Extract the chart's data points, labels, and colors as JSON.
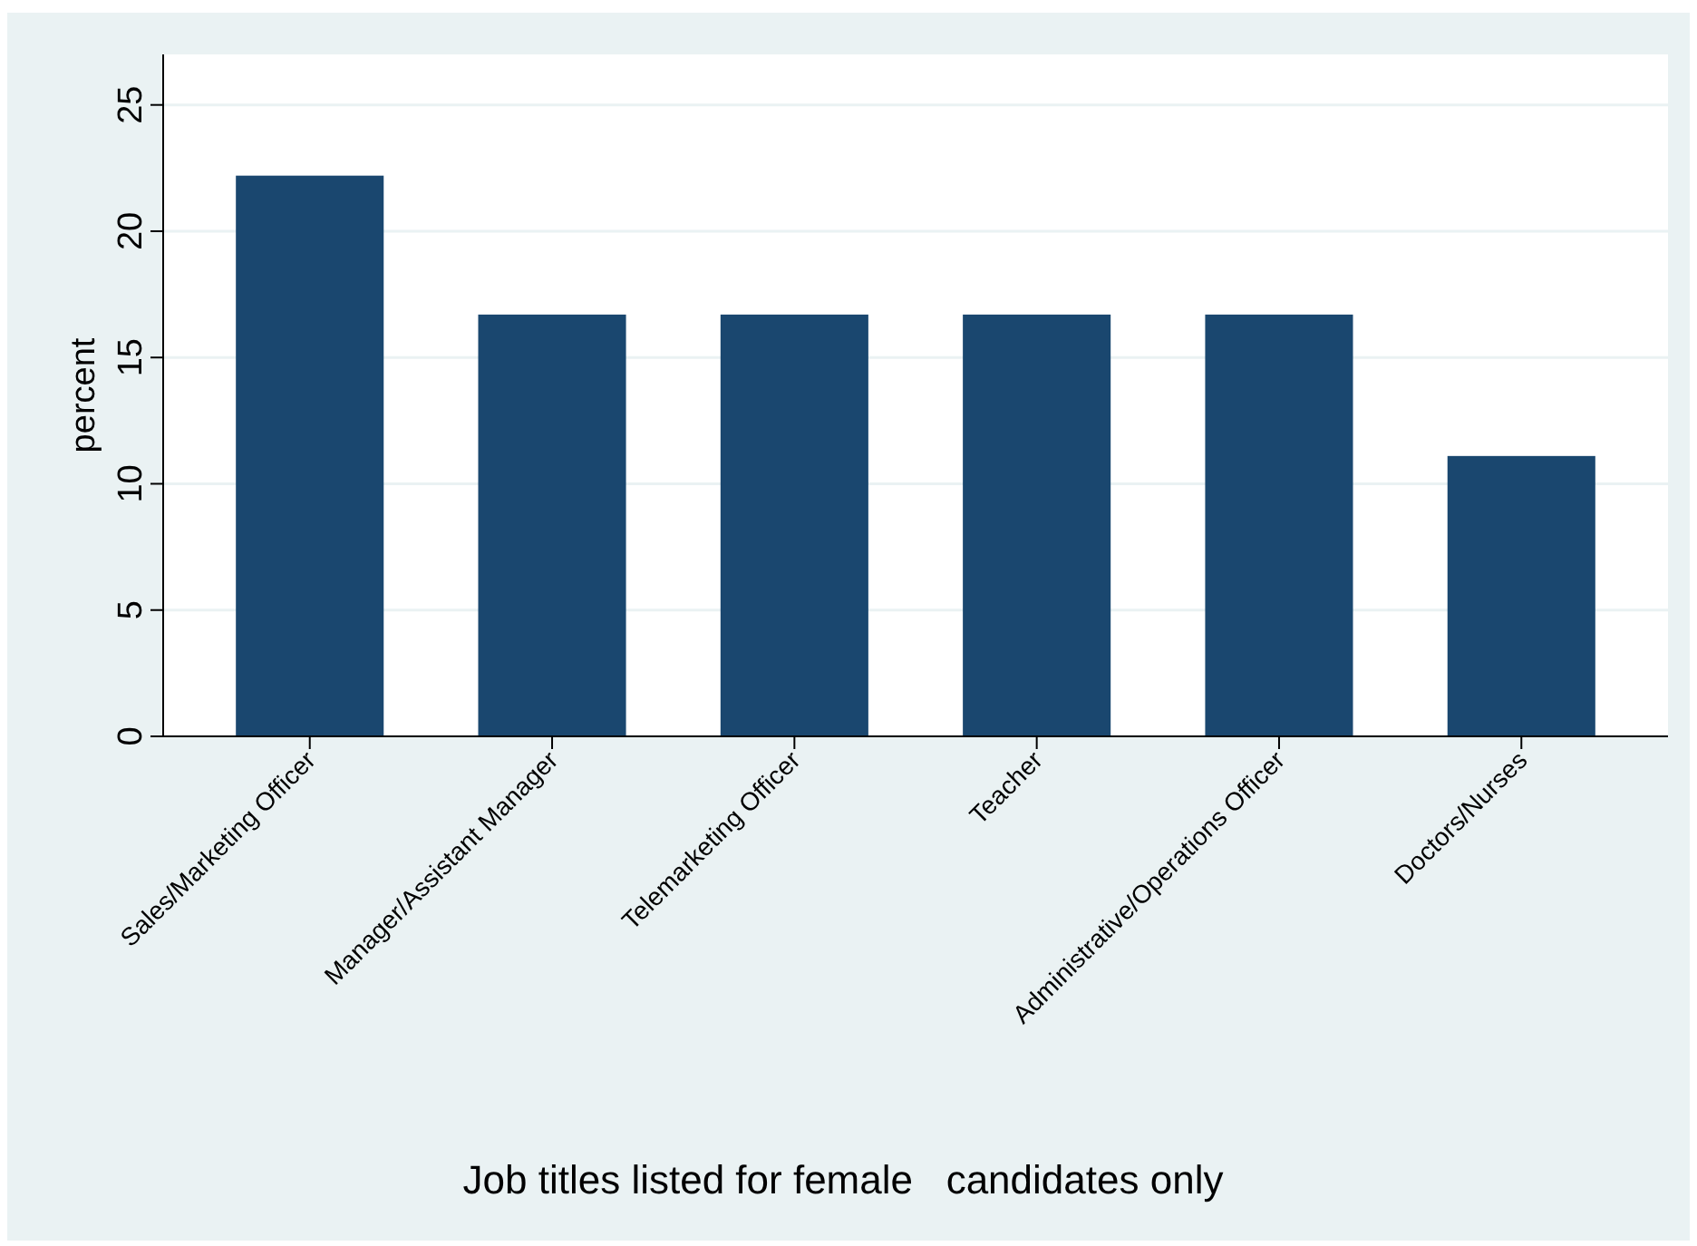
{
  "chart_data": {
    "type": "bar",
    "xlabel": "Job titles listed for female   candidates only",
    "ylabel": "percent",
    "categories": [
      "Sales/Marketing Officer",
      "Manager/Assistant Manager",
      "Telemarketing Officer",
      "Teacher",
      "Administrative/Operations Officer",
      "Doctors/Nurses"
    ],
    "values": [
      22.2,
      16.7,
      16.7,
      16.7,
      16.7,
      11.1
    ],
    "color": "#1a476f",
    "ylim": [
      0,
      27
    ],
    "yticks": [
      0,
      5,
      10,
      15,
      20,
      25
    ],
    "grid": "y"
  }
}
